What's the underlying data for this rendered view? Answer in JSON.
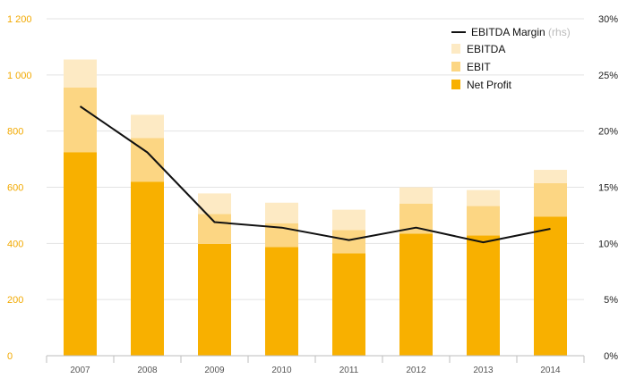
{
  "colors": {
    "net_profit": "#f8b000",
    "ebit": "#fcd683",
    "ebitda": "#fdeac4",
    "line": "#111111",
    "left_axis_text": "#f2a900",
    "grid": "#e3e3e3",
    "axis": "#bdbdbd"
  },
  "chart_data": {
    "type": "bar",
    "stacked": true,
    "title": "",
    "xlabel": "",
    "ylabel": "",
    "categories": [
      "2007",
      "2008",
      "2009",
      "2010",
      "2011",
      "2012",
      "2013",
      "2014"
    ],
    "series": [
      {
        "name": "Net Profit",
        "values": [
          725,
          620,
          398,
          387,
          365,
          435,
          428,
          495
        ]
      },
      {
        "name": "EBIT",
        "values": [
          955,
          775,
          505,
          472,
          448,
          542,
          533,
          615
        ]
      },
      {
        "name": "EBITDA",
        "values": [
          1055,
          858,
          578,
          545,
          520,
          600,
          590,
          662
        ]
      }
    ],
    "line_series": {
      "name": "EBITDA Margin",
      "legend_suffix": "(rhs)",
      "axis": "right",
      "values": [
        22.2,
        18.1,
        11.9,
        11.4,
        10.3,
        11.4,
        10.1,
        11.3
      ]
    },
    "ylim": [
      0,
      1200
    ],
    "y_ticks": [
      "0",
      "200",
      "400",
      "600",
      "800",
      "1 000",
      "1 200"
    ],
    "y_tick_values": [
      0,
      200,
      400,
      600,
      800,
      1000,
      1200
    ],
    "y2lim": [
      0,
      30
    ],
    "y2_ticks": [
      "0%",
      "5%",
      "10%",
      "15%",
      "20%",
      "25%",
      "30%"
    ],
    "y2_tick_values": [
      0,
      5,
      10,
      15,
      20,
      25,
      30
    ],
    "grid": true,
    "legend_position": "top-right",
    "legend": [
      "EBITDA Margin",
      "EBITDA",
      "EBIT",
      "Net Profit"
    ]
  }
}
